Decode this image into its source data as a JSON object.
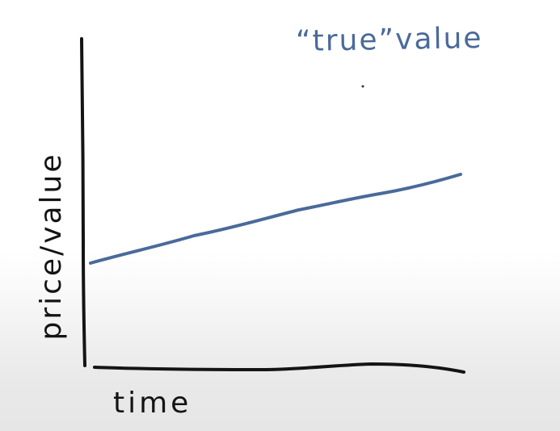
{
  "diagram": {
    "line_label": "“true”value",
    "y_axis_label": "price/value",
    "x_axis_label": "time"
  },
  "colors": {
    "axis": "#141414",
    "true_value_line": "#4a6a9a",
    "text_dark": "#141414"
  }
}
